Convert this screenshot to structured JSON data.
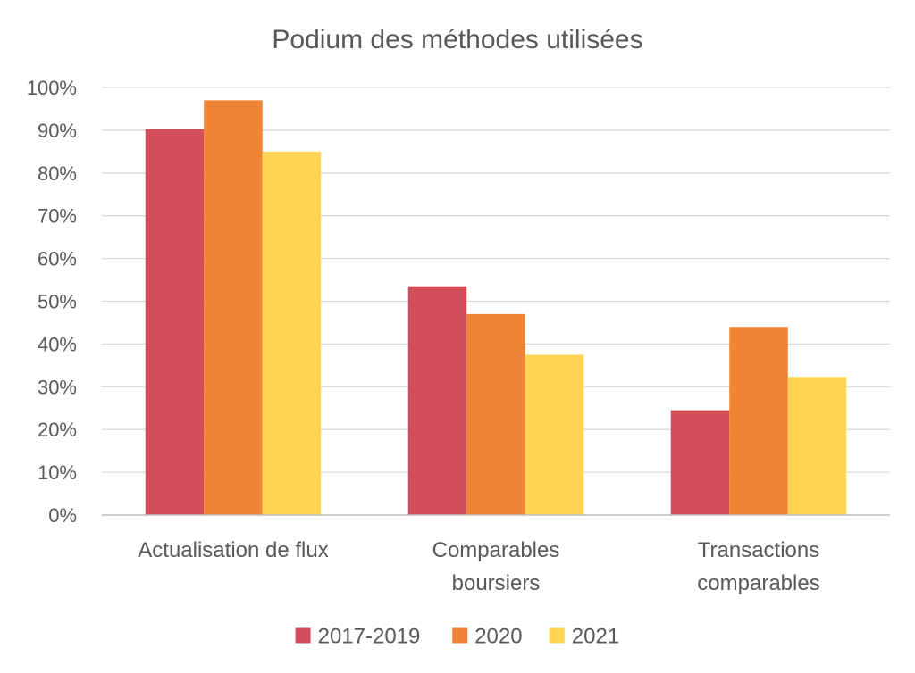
{
  "chart_data": {
    "type": "bar",
    "title": "Podium des méthodes utilisées",
    "categories": [
      [
        "Actualisation de flux"
      ],
      [
        "Comparables",
        "boursiers"
      ],
      [
        "Transactions",
        "comparables"
      ]
    ],
    "series": [
      {
        "name": "2017-2019",
        "color": "#D14E5A",
        "values": [
          90.3,
          53.5,
          24.5
        ]
      },
      {
        "name": "2020",
        "color": "#EF8434",
        "values": [
          97,
          47,
          44
        ]
      },
      {
        "name": "2021",
        "color": "#FFD553",
        "values": [
          85,
          37.5,
          32.3
        ]
      }
    ],
    "ylim": [
      0,
      100
    ],
    "yticks": [
      0,
      10,
      20,
      30,
      40,
      50,
      60,
      70,
      80,
      90,
      100
    ],
    "ytick_labels": [
      "0%",
      "10%",
      "20%",
      "30%",
      "40%",
      "50%",
      "60%",
      "70%",
      "80%",
      "90%",
      "100%"
    ],
    "grid": true,
    "legend_position": "bottom"
  }
}
